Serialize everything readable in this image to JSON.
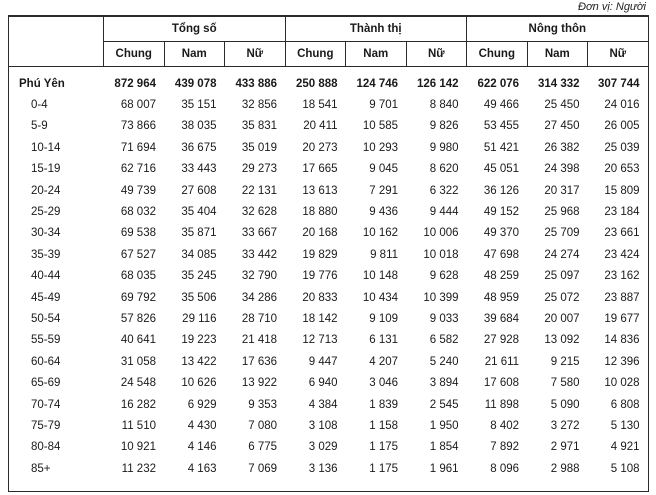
{
  "unit_note": "Đơn vị: Người",
  "table": {
    "groups": [
      "Tổng số",
      "Thành thị",
      "Nông thôn"
    ],
    "subheaders": [
      "Chung",
      "Nam",
      "Nữ"
    ],
    "rows": [
      {
        "label": "Phú Yên",
        "bold": true,
        "values": [
          "872 964",
          "439 078",
          "433 886",
          "250 888",
          "124 746",
          "126 142",
          "622 076",
          "314 332",
          "307 744"
        ]
      },
      {
        "label": "0-4",
        "bold": false,
        "values": [
          "68 007",
          "35 151",
          "32 856",
          "18 541",
          "9 701",
          "8 840",
          "49 466",
          "25 450",
          "24 016"
        ]
      },
      {
        "label": "5-9",
        "bold": false,
        "values": [
          "73 866",
          "38 035",
          "35 831",
          "20 411",
          "10 585",
          "9 826",
          "53 455",
          "27 450",
          "26 005"
        ]
      },
      {
        "label": "10-14",
        "bold": false,
        "values": [
          "71 694",
          "36 675",
          "35 019",
          "20 273",
          "10 293",
          "9 980",
          "51 421",
          "26 382",
          "25 039"
        ]
      },
      {
        "label": "15-19",
        "bold": false,
        "values": [
          "62 716",
          "33 443",
          "29 273",
          "17 665",
          "9 045",
          "8 620",
          "45 051",
          "24 398",
          "20 653"
        ]
      },
      {
        "label": "20-24",
        "bold": false,
        "values": [
          "49 739",
          "27 608",
          "22 131",
          "13 613",
          "7 291",
          "6 322",
          "36 126",
          "20 317",
          "15 809"
        ]
      },
      {
        "label": "25-29",
        "bold": false,
        "values": [
          "68 032",
          "35 404",
          "32 628",
          "18 880",
          "9 436",
          "9 444",
          "49 152",
          "25 968",
          "23 184"
        ]
      },
      {
        "label": "30-34",
        "bold": false,
        "values": [
          "69 538",
          "35 871",
          "33 667",
          "20 168",
          "10 162",
          "10 006",
          "49 370",
          "25 709",
          "23 661"
        ]
      },
      {
        "label": "35-39",
        "bold": false,
        "values": [
          "67 527",
          "34 085",
          "33 442",
          "19 829",
          "9 811",
          "10 018",
          "47 698",
          "24 274",
          "23 424"
        ]
      },
      {
        "label": "40-44",
        "bold": false,
        "values": [
          "68 035",
          "35 245",
          "32 790",
          "19 776",
          "10 148",
          "9 628",
          "48 259",
          "25 097",
          "23 162"
        ]
      },
      {
        "label": "45-49",
        "bold": false,
        "values": [
          "69 792",
          "35 506",
          "34 286",
          "20 833",
          "10 434",
          "10 399",
          "48 959",
          "25 072",
          "23 887"
        ]
      },
      {
        "label": "50-54",
        "bold": false,
        "values": [
          "57 826",
          "29 116",
          "28 710",
          "18 142",
          "9 109",
          "9 033",
          "39 684",
          "20 007",
          "19 677"
        ]
      },
      {
        "label": "55-59",
        "bold": false,
        "values": [
          "40 641",
          "19 223",
          "21 418",
          "12 713",
          "6 131",
          "6 582",
          "27 928",
          "13 092",
          "14 836"
        ]
      },
      {
        "label": "60-64",
        "bold": false,
        "values": [
          "31 058",
          "13 422",
          "17 636",
          "9 447",
          "4 207",
          "5 240",
          "21 611",
          "9 215",
          "12 396"
        ]
      },
      {
        "label": "65-69",
        "bold": false,
        "values": [
          "24 548",
          "10 626",
          "13 922",
          "6 940",
          "3 046",
          "3 894",
          "17 608",
          "7 580",
          "10 028"
        ]
      },
      {
        "label": "70-74",
        "bold": false,
        "values": [
          "16 282",
          "6 929",
          "9 353",
          "4 384",
          "1 839",
          "2 545",
          "11 898",
          "5 090",
          "6 808"
        ]
      },
      {
        "label": "75-79",
        "bold": false,
        "values": [
          "11 510",
          "4 430",
          "7 080",
          "3 108",
          "1 158",
          "1 950",
          "8 402",
          "3 272",
          "5 130"
        ]
      },
      {
        "label": "80-84",
        "bold": false,
        "values": [
          "10 921",
          "4 146",
          "6 775",
          "3 029",
          "1 175",
          "1 854",
          "7 892",
          "2 971",
          "4 921"
        ]
      },
      {
        "label": "85+",
        "bold": false,
        "values": [
          "11 232",
          "4 163",
          "7 069",
          "3 136",
          "1 175",
          "1 961",
          "8 096",
          "2 988",
          "5 108"
        ]
      }
    ]
  }
}
